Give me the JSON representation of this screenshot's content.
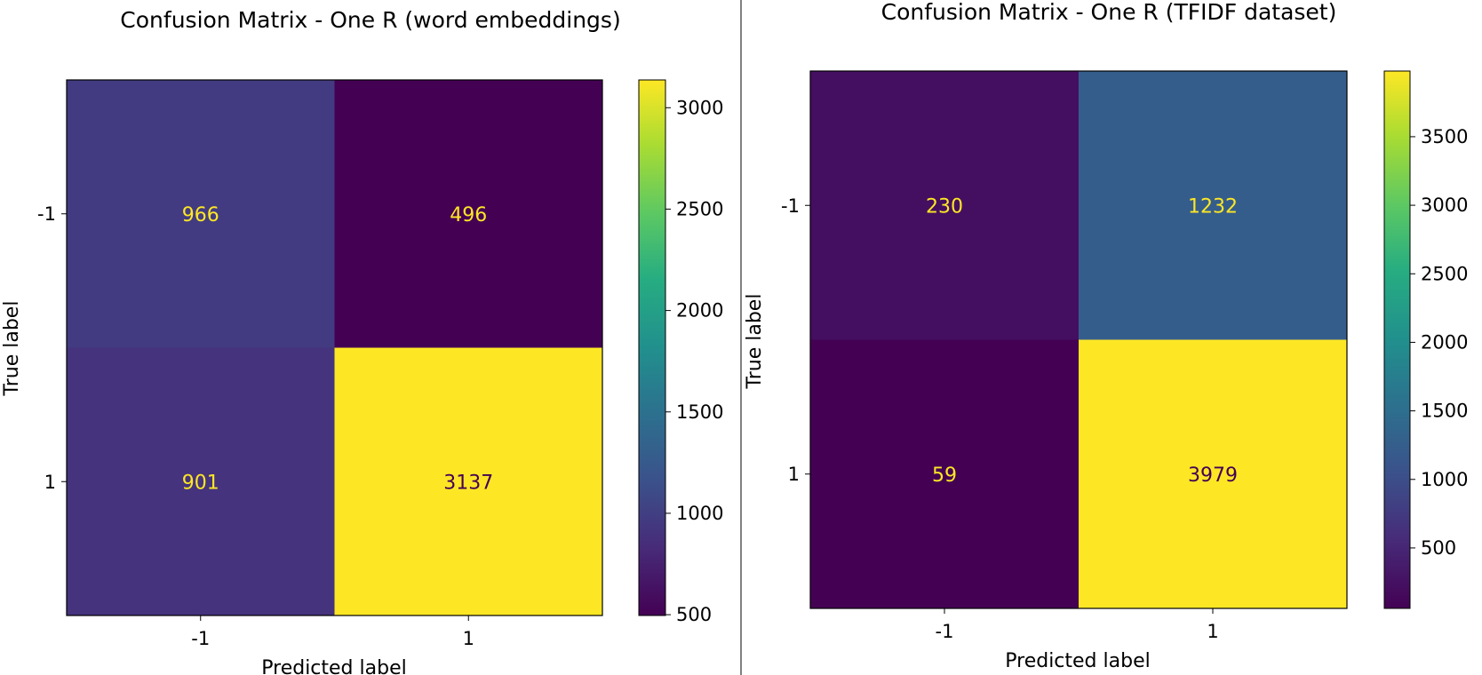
{
  "chart_data": [
    {
      "type": "heatmap",
      "title": "Confusion Matrix - One R (word embeddings)",
      "xlabel": "Predicted label",
      "ylabel": "True label",
      "x_categories": [
        "-1",
        "1"
      ],
      "y_categories": [
        "-1",
        "1"
      ],
      "matrix": [
        [
          966,
          496
        ],
        [
          901,
          3137
        ]
      ],
      "colormap": "viridis",
      "value_range": [
        496,
        3137
      ],
      "colorbar_ticks": [
        500,
        1000,
        1500,
        2000,
        2500,
        3000
      ],
      "colorbar_tick_labels": [
        "500",
        "1000",
        "1500",
        "2000",
        "2500",
        "3000"
      ],
      "cell_labels": [
        "966",
        "496",
        "901",
        "3137"
      ],
      "x_tick_labels": [
        "-1",
        "1"
      ],
      "y_tick_labels": [
        "-1",
        "1"
      ]
    },
    {
      "type": "heatmap",
      "title": "Confusion Matrix - One R (TFIDF dataset)",
      "xlabel": "Predicted label",
      "ylabel": "True label",
      "x_categories": [
        "-1",
        "1"
      ],
      "y_categories": [
        "-1",
        "1"
      ],
      "matrix": [
        [
          230,
          1232
        ],
        [
          59,
          3979
        ]
      ],
      "colormap": "viridis",
      "value_range": [
        59,
        3979
      ],
      "colorbar_ticks": [
        500,
        1000,
        1500,
        2000,
        2500,
        3000,
        3500
      ],
      "colorbar_tick_labels": [
        "500",
        "1000",
        "1500",
        "2000",
        "2500",
        "3000",
        "3500"
      ],
      "cell_labels": [
        "230",
        "1232",
        "59",
        "3979"
      ],
      "x_tick_labels": [
        "-1",
        "1"
      ],
      "y_tick_labels": [
        "-1",
        "1"
      ]
    }
  ],
  "colors": {
    "divider": "#000000",
    "axes_edge": "#000000",
    "text": "#000000",
    "cell_text_dark": "#fde725",
    "cell_text_light": "#440154"
  }
}
